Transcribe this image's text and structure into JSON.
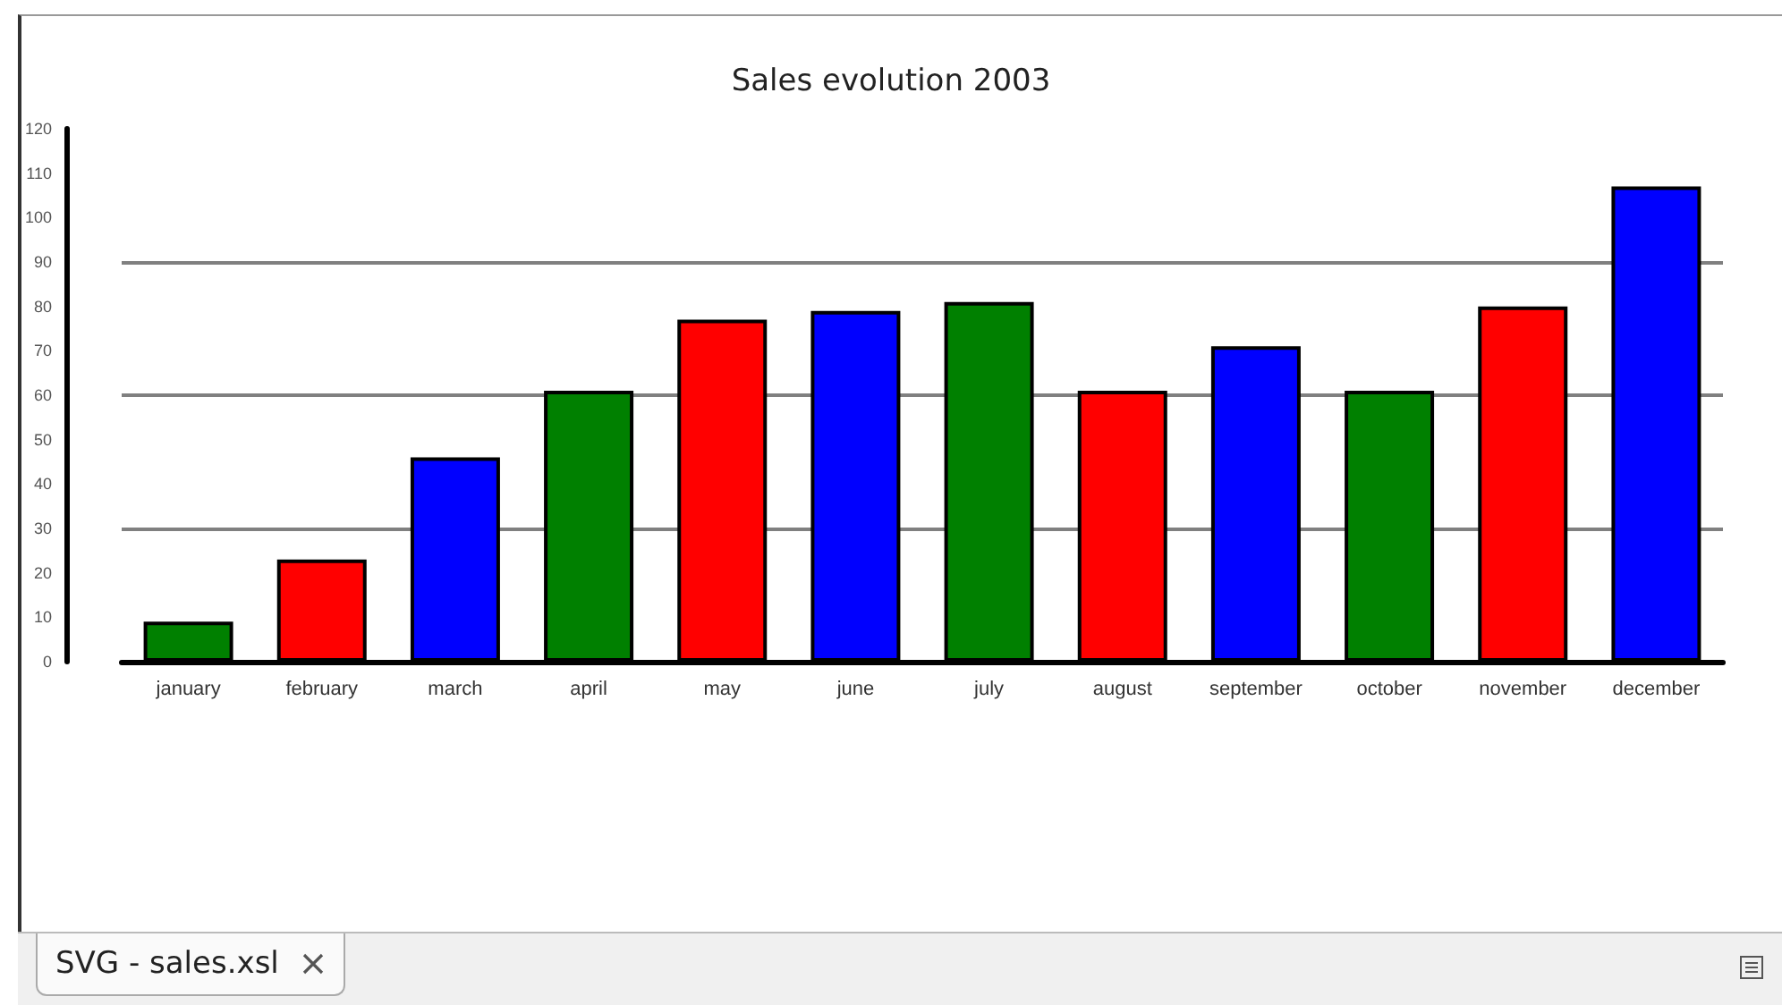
{
  "chart_data": {
    "type": "bar",
    "title": "Sales evolution 2003",
    "categories": [
      "january",
      "february",
      "march",
      "april",
      "may",
      "june",
      "july",
      "august",
      "september",
      "october",
      "november",
      "december"
    ],
    "values": [
      9,
      23,
      46,
      61,
      77,
      79,
      81,
      61,
      71,
      61,
      80,
      107
    ],
    "colors": [
      "#008000",
      "#ff0000",
      "#0000ff",
      "#008000",
      "#ff0000",
      "#0000ff",
      "#008000",
      "#ff0000",
      "#0000ff",
      "#008000",
      "#ff0000",
      "#0000ff"
    ],
    "ylim": [
      0,
      120
    ],
    "yticks": [
      0,
      10,
      20,
      30,
      40,
      50,
      60,
      70,
      80,
      90,
      100,
      110,
      120
    ],
    "ref_lines": [
      {
        "axis": "y",
        "value": 30,
        "color": "#808080"
      },
      {
        "axis": "y",
        "value": 60,
        "color": "#808080"
      },
      {
        "axis": "y",
        "value": 90,
        "color": "#808080"
      }
    ],
    "annotations": [
      "SVG - sales.xsl"
    ]
  }
}
